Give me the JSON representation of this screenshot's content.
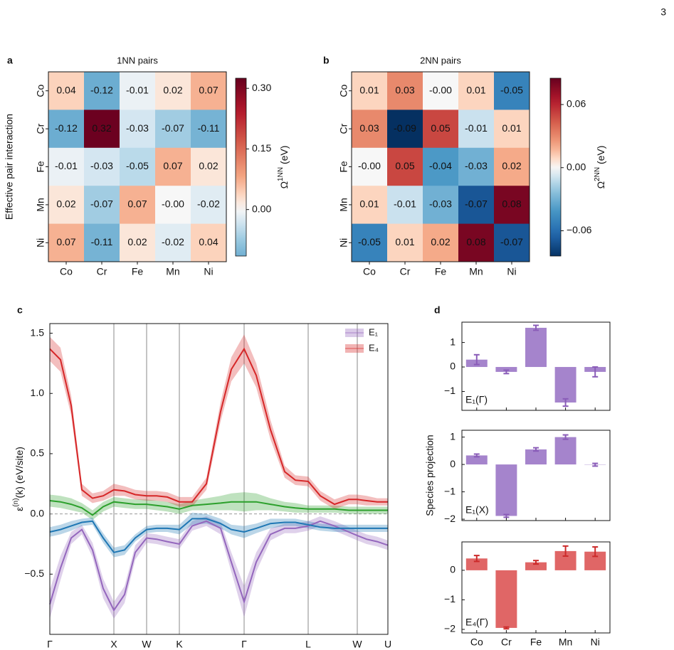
{
  "page_number": "3",
  "chart_data": [
    {
      "type": "heatmap",
      "panel": "a",
      "title": "1NN pairs",
      "ylabel": "Effective pair interaction",
      "categories": [
        "Co",
        "Cr",
        "Fe",
        "Mn",
        "Ni"
      ],
      "values": [
        [
          0.04,
          -0.12,
          -0.01,
          0.02,
          0.07
        ],
        [
          -0.12,
          0.32,
          -0.03,
          -0.07,
          -0.11
        ],
        [
          -0.01,
          -0.03,
          -0.05,
          0.07,
          0.02
        ],
        [
          0.02,
          -0.07,
          0.07,
          -0.0,
          -0.02
        ],
        [
          0.07,
          -0.11,
          0.02,
          -0.02,
          0.04
        ]
      ],
      "value_labels": [
        [
          "0.04",
          "-0.12",
          "-0.01",
          "0.02",
          "0.07"
        ],
        [
          "-0.12",
          "0.32",
          "-0.03",
          "-0.07",
          "-0.11"
        ],
        [
          "-0.01",
          "-0.03",
          "-0.05",
          "0.07",
          "0.02"
        ],
        [
          "0.02",
          "-0.07",
          "0.07",
          "-0.00",
          "-0.02"
        ],
        [
          "0.07",
          "-0.11",
          "0.02",
          "-0.02",
          "0.04"
        ]
      ],
      "colormap": "RdBu_r",
      "colorbar_lim": [
        -0.115,
        0.325
      ],
      "colorbar_ticks": [
        {
          "value": 0,
          "label": "0.00"
        },
        0.15,
        {
          "value": 0.3,
          "label": "0.30"
        }
      ],
      "colorbar_label": {
        "symbol": "Ω",
        "sup": "1NN",
        "unit": " (eV)"
      }
    },
    {
      "type": "heatmap",
      "panel": "b",
      "title": "2NN pairs",
      "categories": [
        "Co",
        "Cr",
        "Fe",
        "Mn",
        "Ni"
      ],
      "values": [
        [
          0.01,
          0.03,
          -0.0,
          0.01,
          -0.05
        ],
        [
          0.03,
          -0.09,
          0.05,
          -0.01,
          0.01
        ],
        [
          -0.0,
          0.05,
          -0.04,
          -0.03,
          0.02
        ],
        [
          0.01,
          -0.01,
          -0.03,
          -0.07,
          0.08
        ],
        [
          -0.05,
          0.01,
          0.02,
          0.08,
          -0.07
        ]
      ],
      "value_labels": [
        [
          "0.01",
          "0.03",
          "-0.00",
          "0.01",
          "-0.05"
        ],
        [
          "0.03",
          "-0.09",
          "0.05",
          "-0.01",
          "0.01"
        ],
        [
          "-0.00",
          "0.05",
          "-0.04",
          "-0.03",
          "0.02"
        ],
        [
          "0.01",
          "-0.01",
          "-0.03",
          "-0.07",
          "0.08"
        ],
        [
          "-0.05",
          "0.01",
          "0.02",
          "0.08",
          "-0.07"
        ]
      ],
      "colormap": "RdBu_r",
      "colorbar_lim": [
        -0.084,
        0.085
      ],
      "colorbar_ticks": [
        {
          "value": -0.06,
          "label": "−0.06"
        },
        {
          "value": 0,
          "label": "0.00"
        },
        0.06
      ],
      "colorbar_label": {
        "symbol": "Ω",
        "sup": "2NN",
        "unit": " (eV)"
      }
    },
    {
      "type": "line",
      "panel": "c",
      "x": [
        0,
        15,
        30,
        45,
        60,
        75,
        90,
        105,
        120,
        136,
        150,
        165,
        182,
        200,
        220,
        240,
        255,
        273,
        290,
        310,
        330,
        345,
        363,
        380,
        400,
        420,
        432,
        445,
        460,
        475
      ],
      "xlim": [
        0,
        475
      ],
      "xticks": [
        {
          "value": 0,
          "label": "Γ"
        },
        {
          "value": 90,
          "label": "X"
        },
        {
          "value": 136,
          "label": "W"
        },
        {
          "value": 182,
          "label": "K"
        },
        {
          "value": 273,
          "label": "Γ"
        },
        {
          "value": 363,
          "label": "L"
        },
        {
          "value": 432,
          "label": "W"
        },
        {
          "value": 475,
          "label": "U"
        }
      ],
      "ylim": [
        -1.0,
        1.58
      ],
      "yticks": [
        {
          "value": -0.5,
          "label": "−0.5"
        },
        {
          "value": 0,
          "label": "0.0"
        },
        0.5,
        {
          "value": 1,
          "label": "1.0"
        },
        1.5
      ],
      "ylabel": {
        "symbol": "ε",
        "sup": "(n)",
        "rest": "(k) (eV/site)"
      },
      "xgrid": true,
      "zero_line": true,
      "legend": "upper right",
      "series": [
        {
          "name": "E₁",
          "color": "#9467bd",
          "values": [
            -0.75,
            -0.45,
            -0.2,
            -0.13,
            -0.3,
            -0.62,
            -0.8,
            -0.67,
            -0.32,
            -0.2,
            -0.21,
            -0.23,
            -0.25,
            -0.1,
            -0.06,
            -0.12,
            -0.4,
            -0.73,
            -0.4,
            -0.17,
            -0.12,
            -0.12,
            -0.1,
            -0.06,
            -0.1,
            -0.15,
            -0.18,
            -0.21,
            -0.23,
            -0.26
          ],
          "band": [
            0.12,
            0.1,
            0.05,
            0.04,
            0.06,
            0.08,
            0.07,
            0.07,
            0.06,
            0.04,
            0.04,
            0.04,
            0.04,
            0.04,
            0.04,
            0.05,
            0.08,
            0.13,
            0.08,
            0.05,
            0.04,
            0.04,
            0.04,
            0.04,
            0.04,
            0.04,
            0.04,
            0.04,
            0.04,
            0.04
          ]
        },
        {
          "color": "#2ca02c",
          "values": [
            0.11,
            0.1,
            0.08,
            0.05,
            -0.01,
            0.06,
            0.1,
            0.09,
            0.08,
            0.08,
            0.07,
            0.06,
            0.04,
            0.07,
            0.08,
            0.09,
            0.1,
            0.1,
            0.1,
            0.08,
            0.06,
            0.05,
            0.04,
            0.04,
            0.04,
            0.03,
            0.03,
            0.03,
            0.03,
            0.03
          ],
          "band": [
            0.05,
            0.05,
            0.05,
            0.04,
            0.04,
            0.04,
            0.04,
            0.04,
            0.04,
            0.04,
            0.04,
            0.04,
            0.04,
            0.04,
            0.05,
            0.06,
            0.07,
            0.08,
            0.07,
            0.05,
            0.04,
            0.04,
            0.03,
            0.03,
            0.03,
            0.03,
            0.03,
            0.03,
            0.03,
            0.03
          ]
        },
        {
          "color": "#1f77b4",
          "values": [
            -0.15,
            -0.13,
            -0.1,
            -0.07,
            -0.06,
            -0.2,
            -0.32,
            -0.3,
            -0.2,
            -0.13,
            -0.12,
            -0.12,
            -0.13,
            -0.04,
            -0.04,
            -0.08,
            -0.13,
            -0.15,
            -0.12,
            -0.08,
            -0.07,
            -0.07,
            -0.09,
            -0.11,
            -0.12,
            -0.12,
            -0.12,
            -0.12,
            -0.12,
            -0.12
          ],
          "band": [
            0.04,
            0.04,
            0.04,
            0.03,
            0.03,
            0.04,
            0.04,
            0.04,
            0.03,
            0.03,
            0.03,
            0.03,
            0.04,
            0.05,
            0.04,
            0.04,
            0.04,
            0.05,
            0.04,
            0.04,
            0.03,
            0.03,
            0.03,
            0.03,
            0.03,
            0.03,
            0.03,
            0.03,
            0.03,
            0.03
          ]
        },
        {
          "name": "E₄",
          "color": "#d62728",
          "values": [
            1.37,
            1.28,
            0.9,
            0.2,
            0.13,
            0.15,
            0.2,
            0.19,
            0.16,
            0.15,
            0.15,
            0.14,
            0.1,
            0.1,
            0.25,
            0.85,
            1.2,
            1.37,
            1.15,
            0.7,
            0.35,
            0.28,
            0.27,
            0.15,
            0.08,
            0.12,
            0.12,
            0.11,
            0.1,
            0.1
          ],
          "band": [
            0.1,
            0.1,
            0.08,
            0.05,
            0.04,
            0.04,
            0.05,
            0.04,
            0.04,
            0.04,
            0.04,
            0.04,
            0.04,
            0.04,
            0.05,
            0.08,
            0.1,
            0.12,
            0.1,
            0.08,
            0.05,
            0.04,
            0.04,
            0.04,
            0.04,
            0.04,
            0.04,
            0.04,
            0.03,
            0.03
          ]
        }
      ]
    },
    {
      "type": "bar",
      "panel": "d",
      "label": "E₁(Γ)",
      "categories": [
        null,
        null,
        null,
        null,
        null
      ],
      "values": [
        0.3,
        -0.2,
        1.6,
        -1.45,
        -0.2
      ],
      "errors": [
        0.2,
        0.07,
        0.1,
        0.15,
        0.2
      ],
      "color": "#a584cc",
      "error_color": "#8a5cb8",
      "ylim": [
        -1.77,
        1.83
      ],
      "yticks": [
        {
          "value": -1,
          "label": "−1"
        },
        0,
        1
      ]
    },
    {
      "type": "bar",
      "label": "E₁(X)",
      "ylabel": "Species projection",
      "categories": [
        null,
        null,
        null,
        null,
        null
      ],
      "values": [
        0.33,
        -1.88,
        0.55,
        1.0,
        -0.01
      ],
      "errors": [
        0.05,
        0.05,
        0.06,
        0.08,
        0.05
      ],
      "color": "#a584cc",
      "error_color": "#8a5cb8",
      "ylim": [
        -2.05,
        1.25
      ],
      "yticks": [
        {
          "value": -2,
          "label": "−2"
        },
        {
          "value": -1,
          "label": "−1"
        },
        0,
        1
      ]
    },
    {
      "type": "bar",
      "label": "E₄(Γ)",
      "categories": [
        "Co",
        "Cr",
        "Fe",
        "Mn",
        "Ni"
      ],
      "values": [
        0.4,
        -1.95,
        0.27,
        0.65,
        0.63
      ],
      "errors": [
        0.1,
        0.03,
        0.06,
        0.17,
        0.16
      ],
      "color": "#e06666",
      "error_color": "#cc2a2a",
      "ylim": [
        -2.12,
        0.96
      ],
      "yticks": [
        {
          "value": -2,
          "label": "−2"
        },
        {
          "value": -1,
          "label": "−1"
        },
        0
      ]
    }
  ]
}
